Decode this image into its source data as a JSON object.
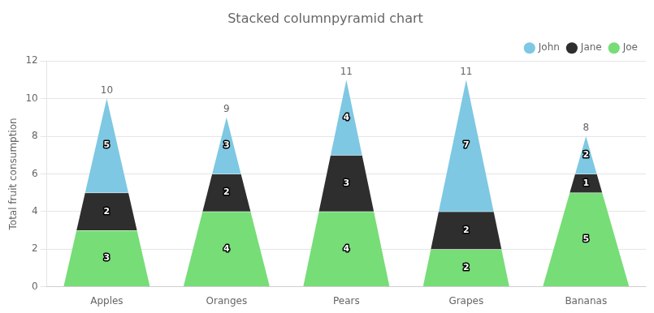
{
  "chart_data": {
    "type": "pyramid",
    "stacked": true,
    "title": "Stacked columnpyramid chart",
    "ylabel": "Total fruit consumption",
    "categories": [
      "Apples",
      "Oranges",
      "Pears",
      "Grapes",
      "Bananas"
    ],
    "series": [
      {
        "name": "Joe",
        "color": "#77dd77",
        "values": [
          3,
          4,
          4,
          2,
          5
        ]
      },
      {
        "name": "Jane",
        "color": "#2e2e2e",
        "values": [
          2,
          2,
          3,
          2,
          1
        ]
      },
      {
        "name": "John",
        "color": "#7ec8e3",
        "values": [
          5,
          3,
          4,
          7,
          2
        ]
      }
    ],
    "totals": [
      10,
      9,
      11,
      11,
      8
    ],
    "ylim": [
      0,
      12
    ],
    "yticks": [
      0,
      2,
      4,
      6,
      8,
      10,
      12
    ],
    "grid": true,
    "legend": "upper right",
    "data_labels": true
  }
}
